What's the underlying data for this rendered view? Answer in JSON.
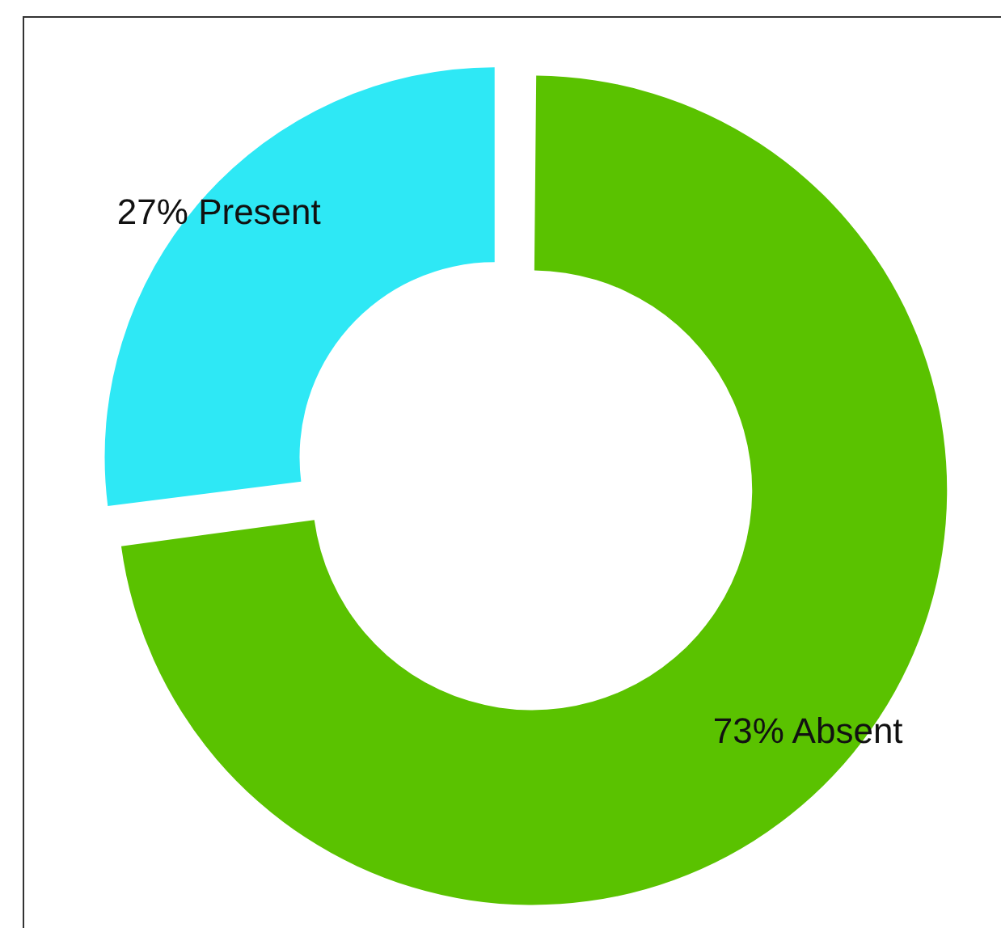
{
  "chart_data": {
    "type": "donut",
    "categories": [
      "Absent",
      "Present"
    ],
    "values": [
      73,
      27
    ],
    "colors": [
      "#5ac200",
      "#2ee8f5"
    ],
    "value_labels": [
      "73%",
      "27%"
    ],
    "legend": false
  }
}
